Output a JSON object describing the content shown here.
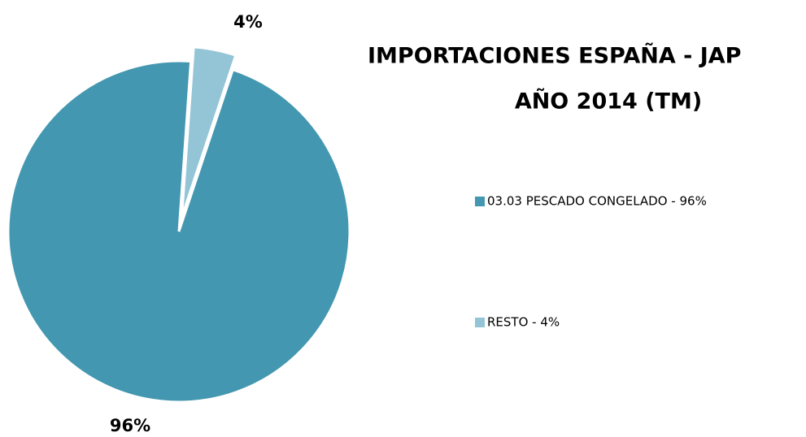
{
  "chart_data": {
    "type": "pie",
    "title": [
      "IMPORTACIONES ESPAÑA -  JAP",
      "AÑO 2014 (TM)"
    ],
    "categories": [
      "03.03 PESCADO CONGELADO - 96%",
      "RESTO - 4%"
    ],
    "values": [
      96,
      4
    ],
    "value_labels": [
      "96%",
      "4%"
    ],
    "colors": [
      "#4397b0",
      "#93c5d6"
    ],
    "legend": "right"
  }
}
